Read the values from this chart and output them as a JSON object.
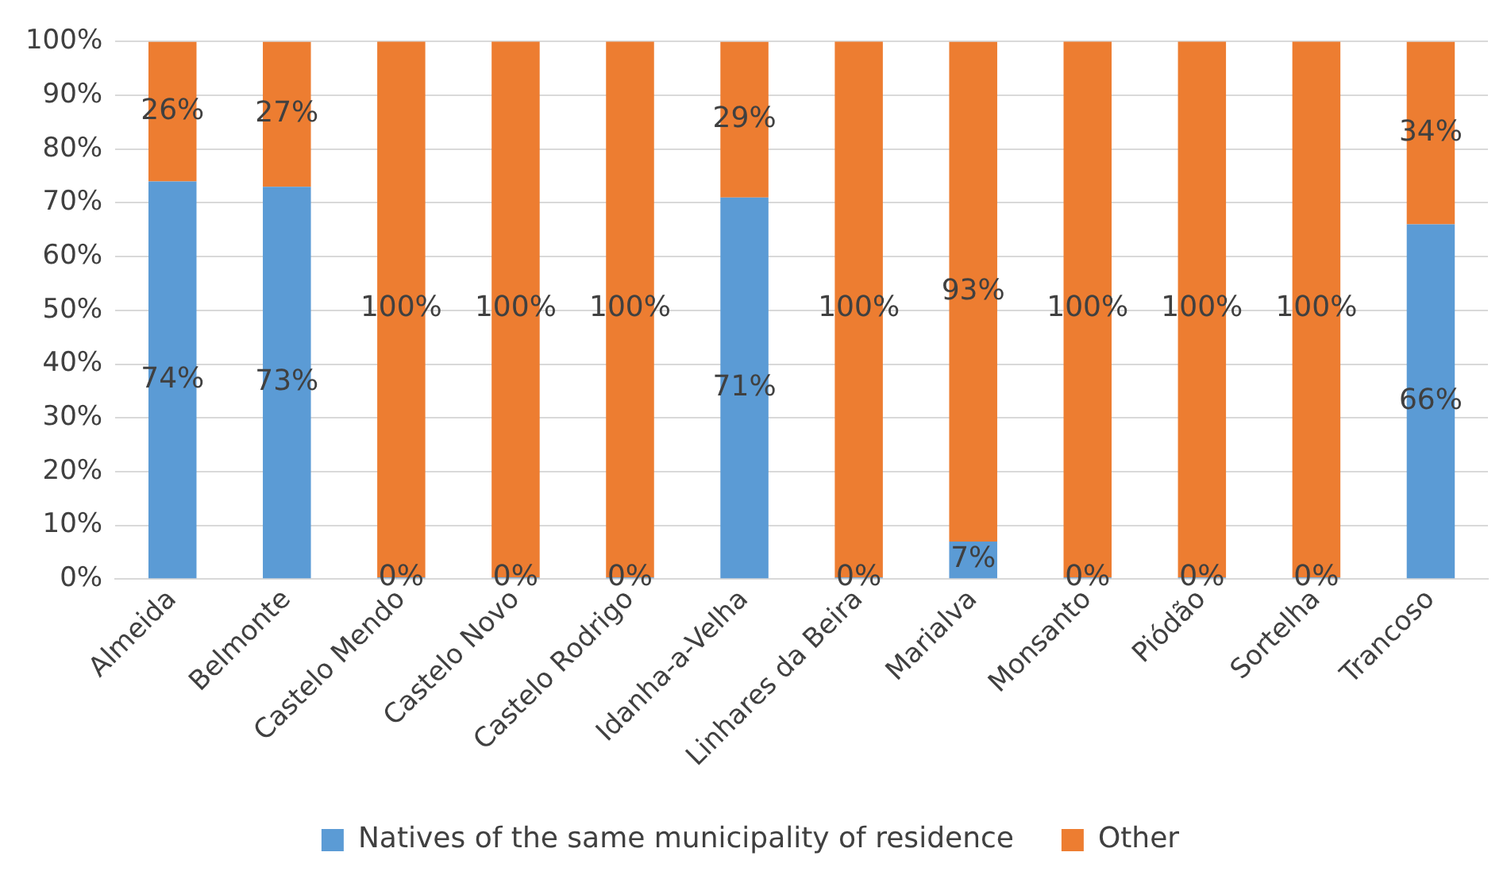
{
  "chart_data": {
    "type": "bar",
    "stacked": true,
    "categories": [
      "Almeida",
      "Belmonte",
      "Castelo Mendo",
      "Castelo Novo",
      "Castelo Rodrigo",
      "Idanha-a-Velha",
      "Linhares da Beira",
      "Marialva",
      "Monsanto",
      "Piódão",
      "Sortelha",
      "Trancoso"
    ],
    "series": [
      {
        "name": "Natives of the same municipality of residence",
        "color": "#5b9bd5",
        "values": [
          74,
          73,
          0,
          0,
          0,
          71,
          0,
          7,
          0,
          0,
          0,
          66
        ],
        "value_labels": [
          "74%",
          "73%",
          "0%",
          "0%",
          "0%",
          "71%",
          "0%",
          "7%",
          "0%",
          "0%",
          "0%",
          "66%"
        ]
      },
      {
        "name": "Other",
        "color": "#ed7d31",
        "values": [
          26,
          27,
          100,
          100,
          100,
          29,
          100,
          93,
          100,
          100,
          100,
          34
        ],
        "value_labels": [
          "26%",
          "27%",
          "100%",
          "100%",
          "100%",
          "29%",
          "100%",
          "93%",
          "100%",
          "100%",
          "100%",
          "34%"
        ]
      }
    ],
    "ylim": [
      0,
      100
    ],
    "yticks": [
      {
        "value": 0,
        "label": "0%"
      },
      {
        "value": 10,
        "label": "10%"
      },
      {
        "value": 20,
        "label": "20%"
      },
      {
        "value": 30,
        "label": "30%"
      },
      {
        "value": 40,
        "label": "40%"
      },
      {
        "value": 50,
        "label": "50%"
      },
      {
        "value": 60,
        "label": "60%"
      },
      {
        "value": 70,
        "label": "70%"
      },
      {
        "value": 80,
        "label": "80%"
      },
      {
        "value": 90,
        "label": "90%"
      },
      {
        "value": 100,
        "label": "100%"
      }
    ],
    "grid": "y",
    "legend": "bottom"
  }
}
